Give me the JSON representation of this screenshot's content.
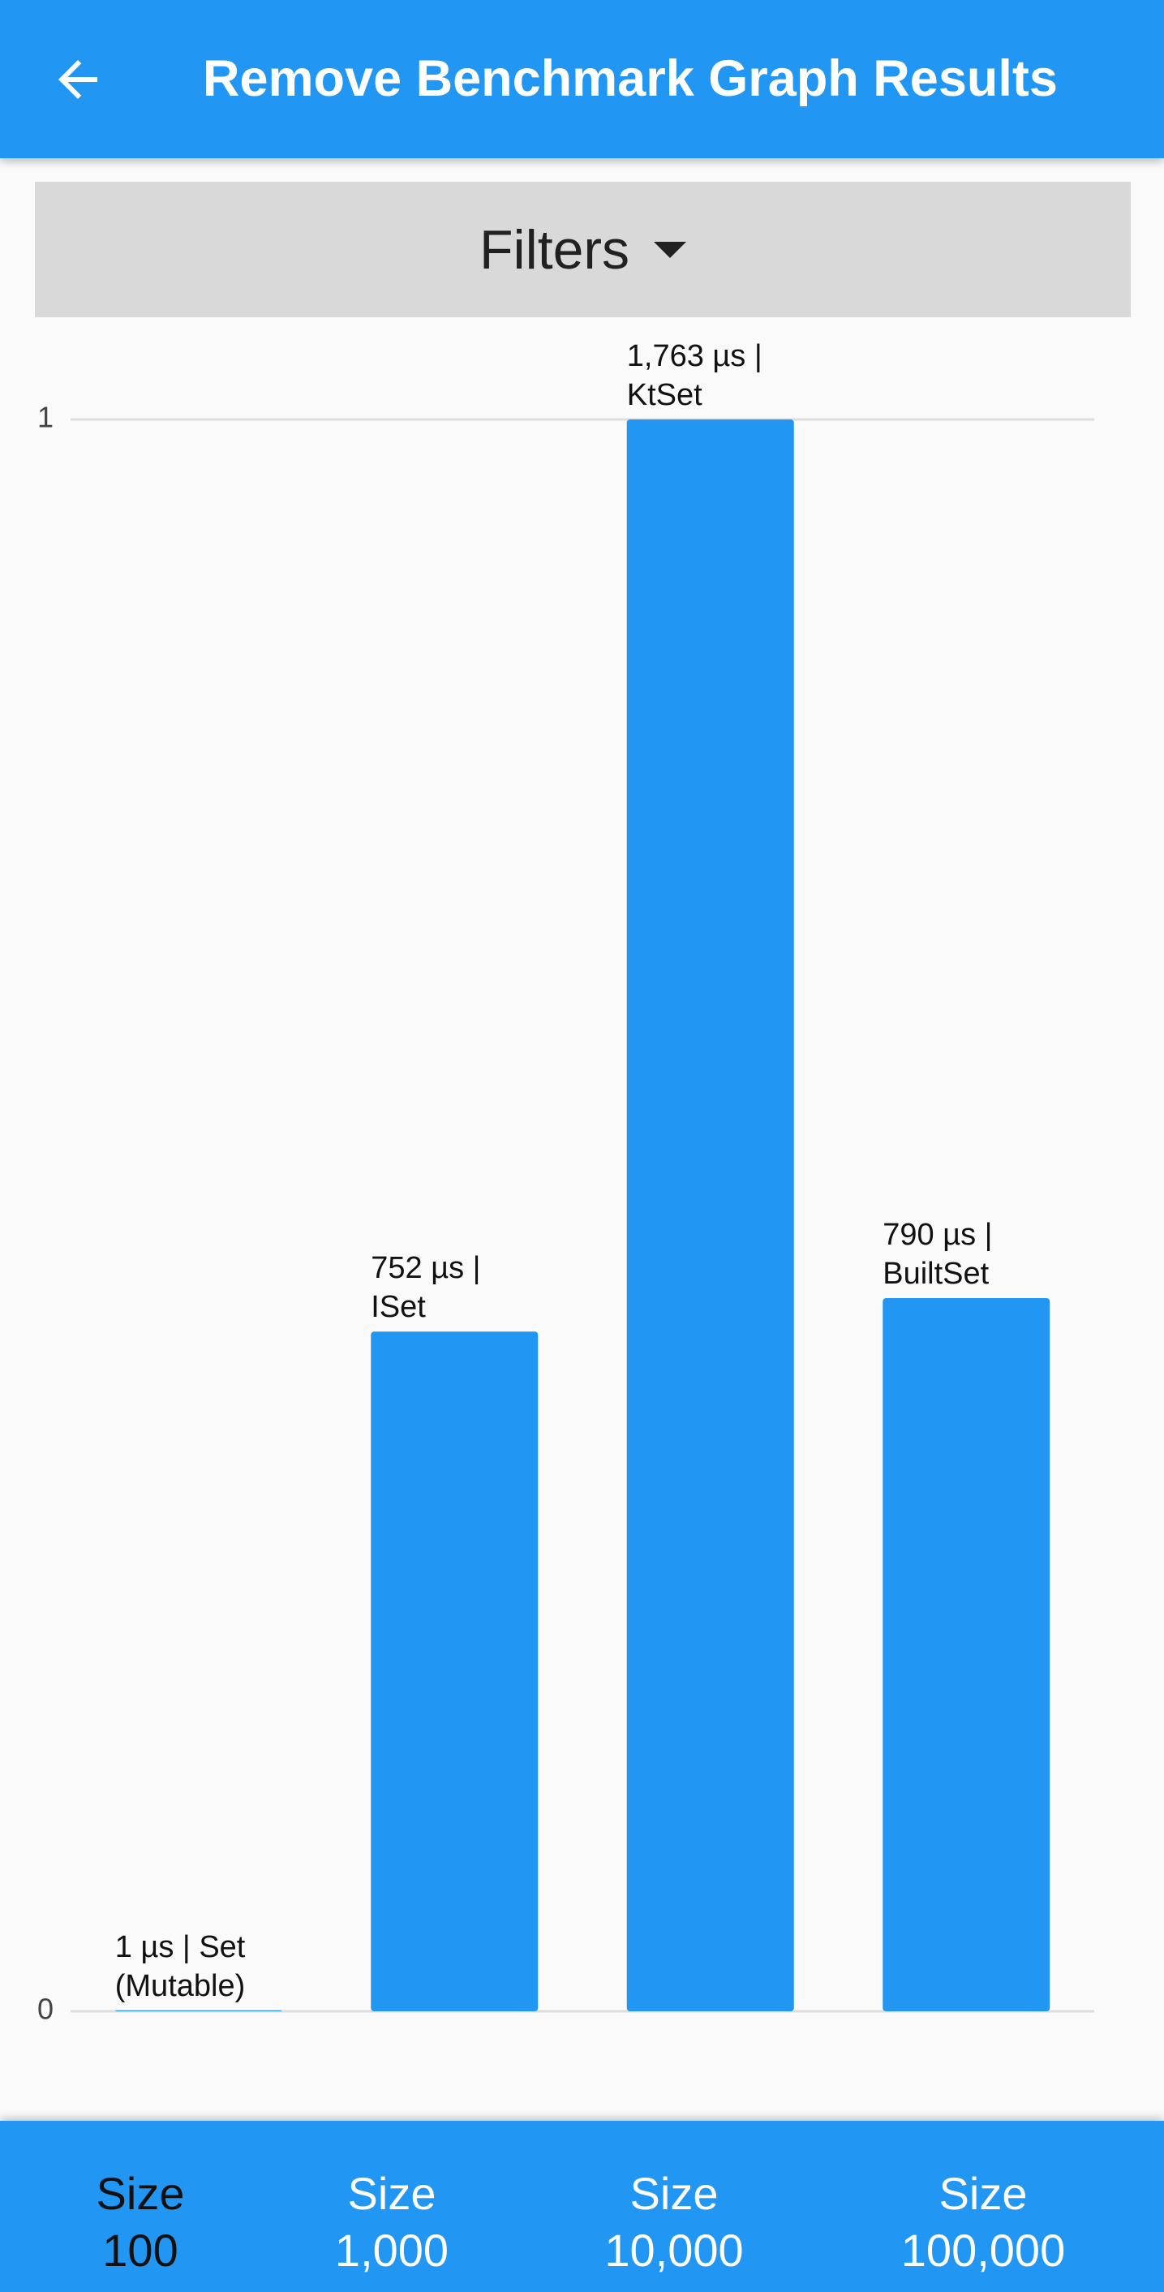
{
  "app_bar": {
    "title": "Remove Benchmark Graph Results"
  },
  "filters": {
    "label": "Filters"
  },
  "chart_data": {
    "type": "bar",
    "values": [
      0.0006,
      0.427,
      1,
      0.448
    ],
    "bar_labels": [
      "1 µs | Set (Mutable)",
      "752 µs | ISet",
      "1,763 µs | KtSet",
      "790 µs | BuiltSet"
    ],
    "color": "#2196f3",
    "ylim": [
      0,
      1
    ],
    "yticks": [
      0,
      1
    ],
    "grid": true
  },
  "bottom_nav": {
    "tabs": [
      [
        "Size",
        "100"
      ],
      [
        "Size",
        "1,000"
      ],
      [
        "Size",
        "10,000"
      ],
      [
        "Size",
        "100,000"
      ]
    ],
    "selected": 0
  }
}
